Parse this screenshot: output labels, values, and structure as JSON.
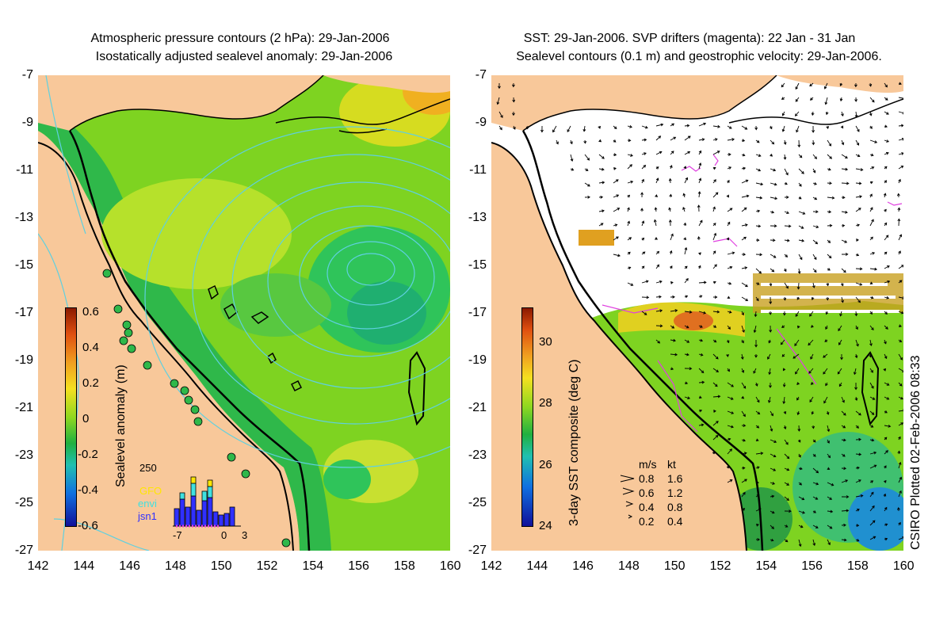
{
  "left_panel": {
    "title_line1": "Atmospheric pressure contours (2 hPa): 29-Jan-2006",
    "title_line2": "Isostatically adjusted sealevel anomaly: 29-Jan-2006",
    "colorbar_label": "Sealevel anomaly (m)",
    "colorbar_ticks": [
      "0.6",
      "0.4",
      "0.2",
      "0",
      "-0.2",
      "-0.4",
      "-0.6"
    ],
    "histogram": {
      "max_label": "250",
      "legend": [
        {
          "name": "GFO",
          "color": "#ffe600"
        },
        {
          "name": "envi",
          "color": "#40e0e0"
        },
        {
          "name": "jsn1",
          "color": "#3030ff"
        }
      ],
      "x_ticks": [
        "-7",
        "0",
        "3"
      ]
    }
  },
  "right_panel": {
    "title_line1": "SST: 29-Jan-2006. SVP drifters (magenta): 22 Jan - 31 Jan",
    "title_line2": "Sealevel contours (0.1 m) and geostrophic velocity: 29-Jan-2006.",
    "colorbar_label": "3-day SST composite (deg C)",
    "colorbar_ticks": [
      "30",
      "28",
      "26",
      "24"
    ],
    "velocity_legend": {
      "header_ms": "m/s",
      "header_kt": "kt",
      "rows": [
        {
          "ms": "0.8",
          "kt": "1.6"
        },
        {
          "ms": "0.6",
          "kt": "1.2"
        },
        {
          "ms": "0.4",
          "kt": "0.8"
        },
        {
          "ms": "0.2",
          "kt": "0.4"
        }
      ]
    },
    "plotted_note": "CSIRO Plotted 02-Feb-2006 08:33"
  },
  "axes": {
    "y_ticks": [
      "-7",
      "-9",
      "-11",
      "-13",
      "-15",
      "-17",
      "-19",
      "-21",
      "-23",
      "-25",
      "-27"
    ],
    "x_ticks": [
      "142",
      "144",
      "146",
      "148",
      "150",
      "152",
      "154",
      "156",
      "158",
      "160"
    ]
  },
  "colors": {
    "land": "#f8c89a",
    "ocean_green": "#7ed321",
    "contour_cyan": "#5fd0e0",
    "coastline": "#000000",
    "drifter_magenta": "#e040e0"
  }
}
